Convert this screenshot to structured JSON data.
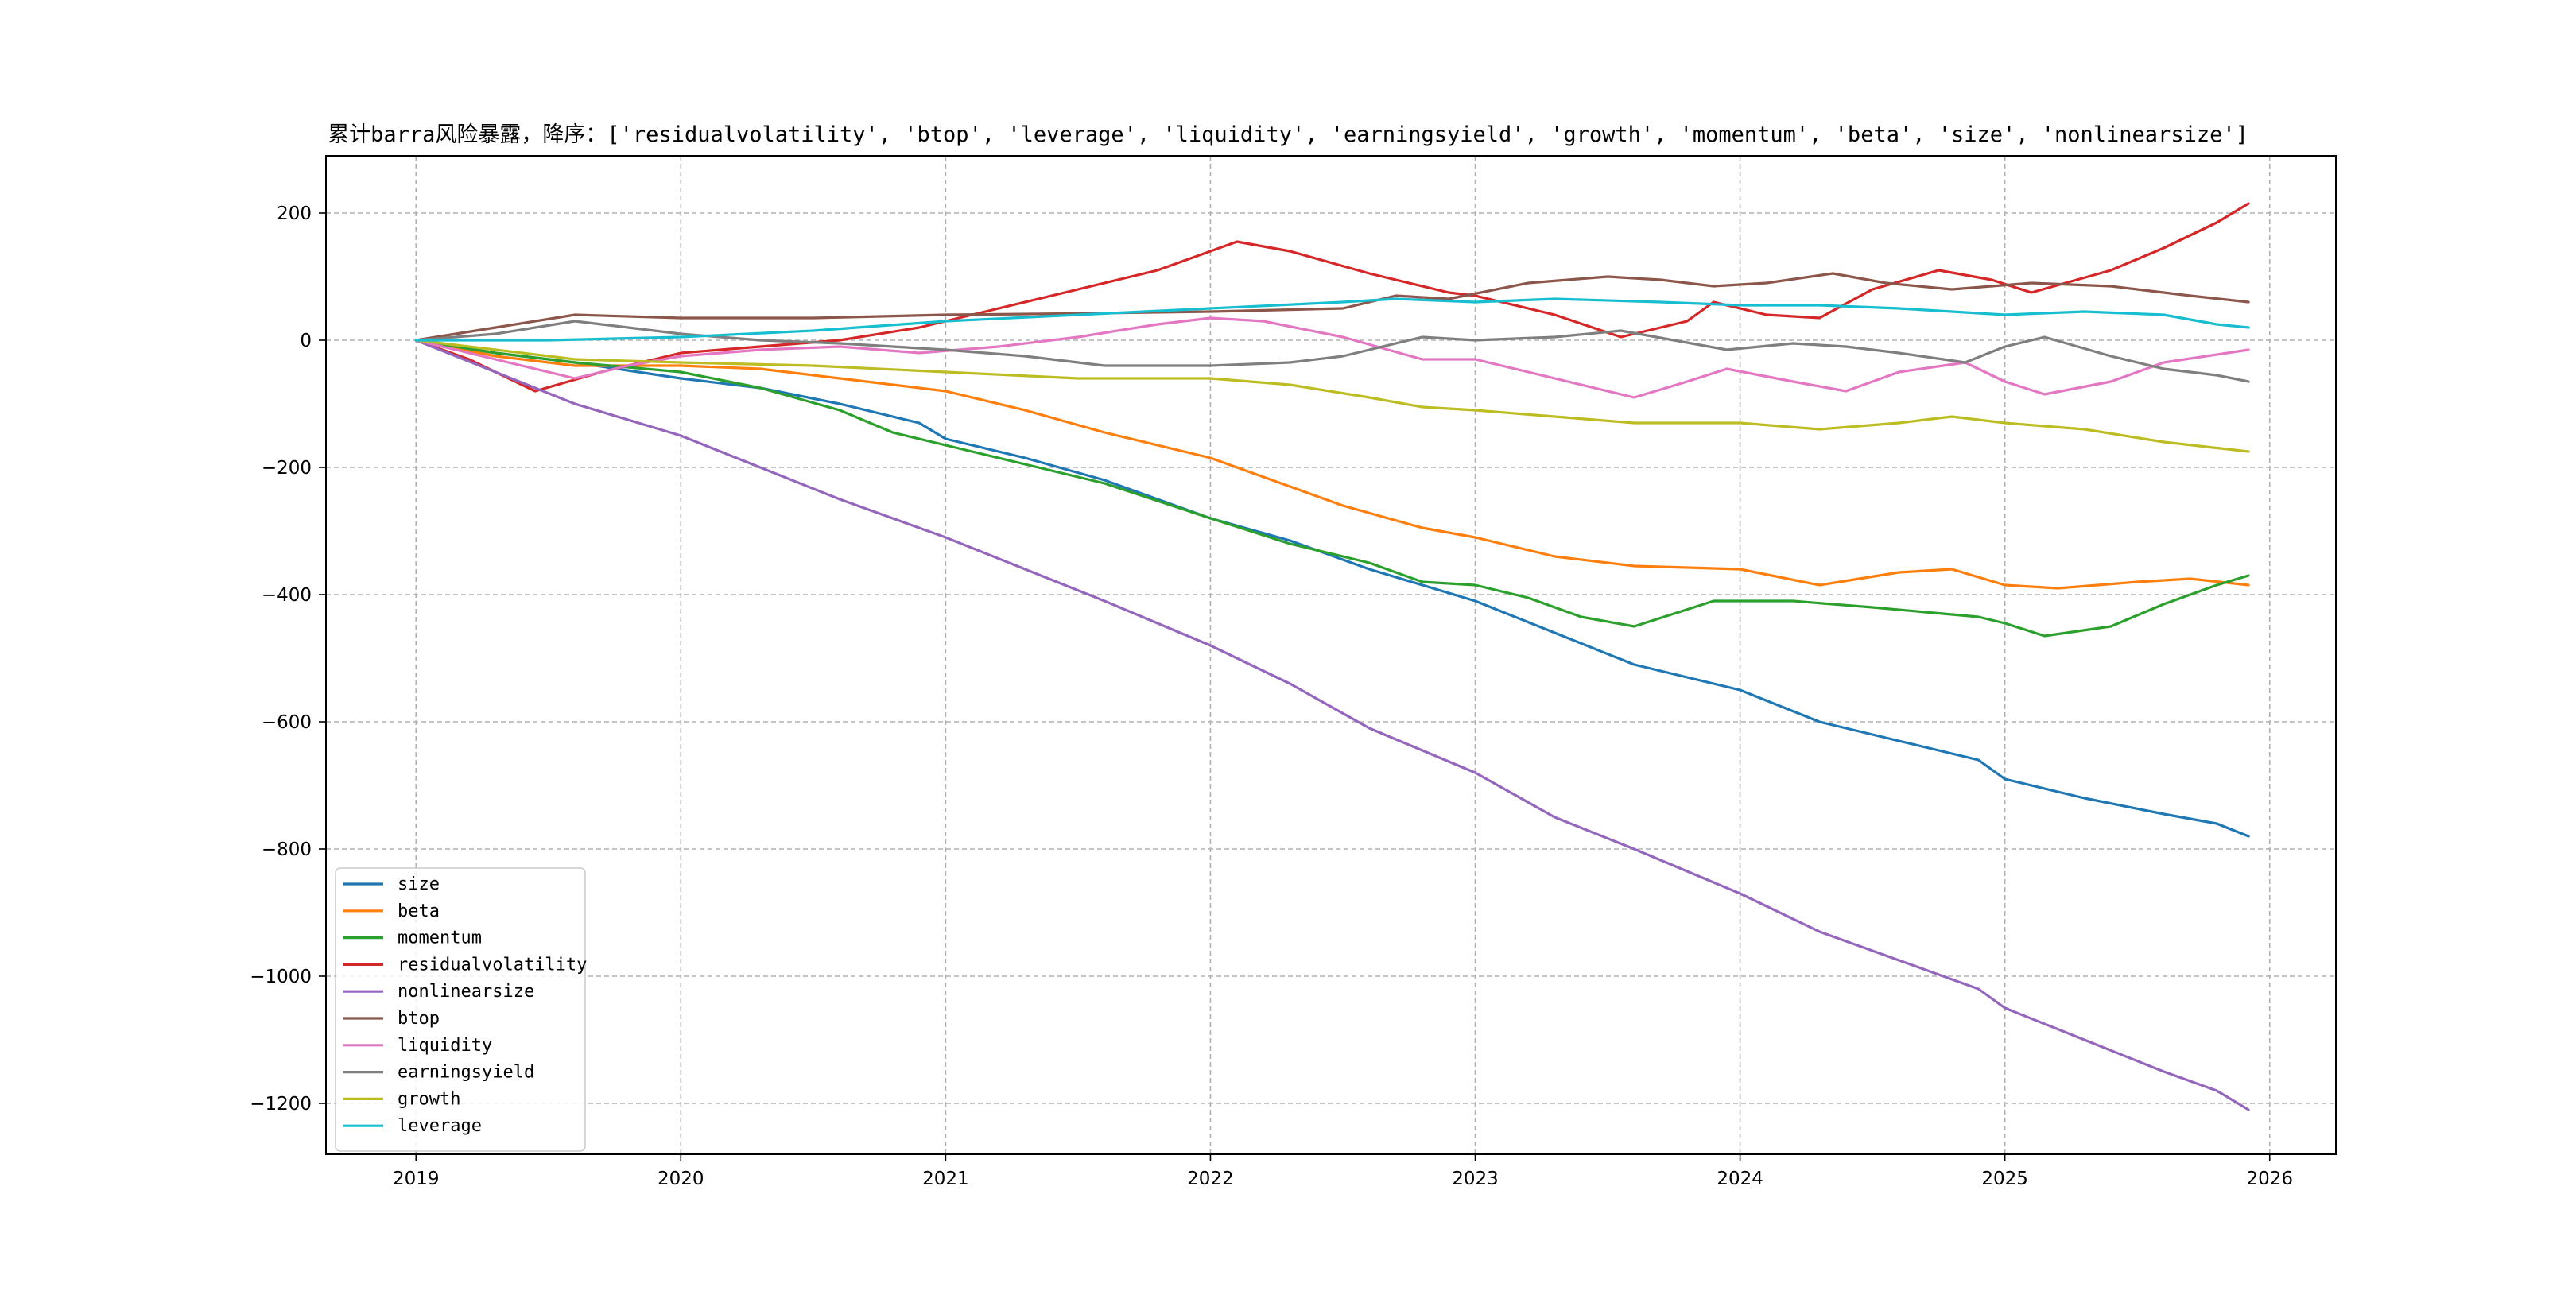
{
  "chart_data": {
    "type": "line",
    "title": "累计barra风险暴露，降序：['residualvolatility', 'btop', 'leverage', 'liquidity', 'earningsyield', 'growth', 'momentum', 'beta', 'size', 'nonlinearsize']",
    "xlabel": "",
    "ylabel": "",
    "xlim": [
      2018.66,
      2026.25
    ],
    "ylim": [
      -1280,
      290
    ],
    "xticks": [
      "2019",
      "2020",
      "2021",
      "2022",
      "2023",
      "2024",
      "2025",
      "2026"
    ],
    "yticks": [
      200,
      0,
      -200,
      -400,
      -600,
      -800,
      -1000,
      -1200
    ],
    "grid": true,
    "legend_position": "lower-left",
    "series": [
      {
        "name": "size",
        "color": "#1f77b4",
        "points": [
          [
            2019.0,
            0
          ],
          [
            2019.3,
            -20
          ],
          [
            2019.6,
            -35
          ],
          [
            2020.0,
            -60
          ],
          [
            2020.3,
            -75
          ],
          [
            2020.6,
            -100
          ],
          [
            2020.9,
            -130
          ],
          [
            2021.0,
            -155
          ],
          [
            2021.3,
            -185
          ],
          [
            2021.6,
            -220
          ],
          [
            2022.0,
            -280
          ],
          [
            2022.3,
            -315
          ],
          [
            2022.6,
            -360
          ],
          [
            2023.0,
            -410
          ],
          [
            2023.3,
            -460
          ],
          [
            2023.6,
            -510
          ],
          [
            2024.0,
            -550
          ],
          [
            2024.3,
            -600
          ],
          [
            2024.6,
            -630
          ],
          [
            2024.9,
            -660
          ],
          [
            2025.0,
            -690
          ],
          [
            2025.3,
            -720
          ],
          [
            2025.6,
            -745
          ],
          [
            2025.8,
            -760
          ],
          [
            2025.92,
            -780
          ]
        ]
      },
      {
        "name": "beta",
        "color": "#ff7f0e",
        "points": [
          [
            2019.0,
            0
          ],
          [
            2019.3,
            -25
          ],
          [
            2019.6,
            -40
          ],
          [
            2020.0,
            -40
          ],
          [
            2020.3,
            -45
          ],
          [
            2020.6,
            -60
          ],
          [
            2021.0,
            -80
          ],
          [
            2021.3,
            -110
          ],
          [
            2021.6,
            -145
          ],
          [
            2022.0,
            -185
          ],
          [
            2022.2,
            -215
          ],
          [
            2022.5,
            -260
          ],
          [
            2022.8,
            -295
          ],
          [
            2023.0,
            -310
          ],
          [
            2023.3,
            -340
          ],
          [
            2023.6,
            -355
          ],
          [
            2024.0,
            -360
          ],
          [
            2024.3,
            -385
          ],
          [
            2024.6,
            -365
          ],
          [
            2024.8,
            -360
          ],
          [
            2025.0,
            -385
          ],
          [
            2025.2,
            -390
          ],
          [
            2025.5,
            -380
          ],
          [
            2025.7,
            -375
          ],
          [
            2025.92,
            -385
          ]
        ]
      },
      {
        "name": "momentum",
        "color": "#2ca02c",
        "points": [
          [
            2019.0,
            0
          ],
          [
            2019.3,
            -20
          ],
          [
            2019.6,
            -35
          ],
          [
            2020.0,
            -50
          ],
          [
            2020.3,
            -75
          ],
          [
            2020.6,
            -110
          ],
          [
            2020.8,
            -145
          ],
          [
            2021.0,
            -165
          ],
          [
            2021.3,
            -195
          ],
          [
            2021.6,
            -225
          ],
          [
            2022.0,
            -280
          ],
          [
            2022.3,
            -320
          ],
          [
            2022.6,
            -350
          ],
          [
            2022.8,
            -380
          ],
          [
            2023.0,
            -385
          ],
          [
            2023.2,
            -405
          ],
          [
            2023.4,
            -435
          ],
          [
            2023.6,
            -450
          ],
          [
            2023.9,
            -410
          ],
          [
            2024.2,
            -410
          ],
          [
            2024.5,
            -420
          ],
          [
            2024.9,
            -435
          ],
          [
            2025.0,
            -445
          ],
          [
            2025.15,
            -465
          ],
          [
            2025.4,
            -450
          ],
          [
            2025.6,
            -415
          ],
          [
            2025.8,
            -385
          ],
          [
            2025.92,
            -370
          ]
        ]
      },
      {
        "name": "residualvolatility",
        "color": "#d62728",
        "points": [
          [
            2019.0,
            0
          ],
          [
            2019.2,
            -30
          ],
          [
            2019.45,
            -80
          ],
          [
            2019.7,
            -50
          ],
          [
            2020.0,
            -20
          ],
          [
            2020.3,
            -10
          ],
          [
            2020.6,
            0
          ],
          [
            2020.9,
            20
          ],
          [
            2021.2,
            50
          ],
          [
            2021.5,
            80
          ],
          [
            2021.8,
            110
          ],
          [
            2022.0,
            140
          ],
          [
            2022.1,
            155
          ],
          [
            2022.3,
            140
          ],
          [
            2022.6,
            105
          ],
          [
            2022.9,
            75
          ],
          [
            2023.0,
            70
          ],
          [
            2023.3,
            40
          ],
          [
            2023.55,
            5
          ],
          [
            2023.8,
            30
          ],
          [
            2023.9,
            60
          ],
          [
            2024.1,
            40
          ],
          [
            2024.3,
            35
          ],
          [
            2024.5,
            80
          ],
          [
            2024.75,
            110
          ],
          [
            2024.95,
            95
          ],
          [
            2025.1,
            75
          ],
          [
            2025.4,
            110
          ],
          [
            2025.6,
            145
          ],
          [
            2025.8,
            185
          ],
          [
            2025.92,
            215
          ]
        ]
      },
      {
        "name": "nonlinearsize",
        "color": "#9467bd",
        "points": [
          [
            2019.0,
            0
          ],
          [
            2019.3,
            -50
          ],
          [
            2019.6,
            -100
          ],
          [
            2020.0,
            -150
          ],
          [
            2020.3,
            -200
          ],
          [
            2020.6,
            -250
          ],
          [
            2020.8,
            -280
          ],
          [
            2021.0,
            -310
          ],
          [
            2021.3,
            -360
          ],
          [
            2021.6,
            -410
          ],
          [
            2022.0,
            -480
          ],
          [
            2022.3,
            -540
          ],
          [
            2022.6,
            -610
          ],
          [
            2023.0,
            -680
          ],
          [
            2023.3,
            -750
          ],
          [
            2023.6,
            -800
          ],
          [
            2024.0,
            -870
          ],
          [
            2024.3,
            -930
          ],
          [
            2024.6,
            -975
          ],
          [
            2024.9,
            -1020
          ],
          [
            2025.0,
            -1050
          ],
          [
            2025.3,
            -1100
          ],
          [
            2025.6,
            -1150
          ],
          [
            2025.8,
            -1180
          ],
          [
            2025.92,
            -1210
          ]
        ]
      },
      {
        "name": "btop",
        "color": "#8c564b",
        "points": [
          [
            2019.0,
            0
          ],
          [
            2019.3,
            20
          ],
          [
            2019.6,
            40
          ],
          [
            2020.0,
            35
          ],
          [
            2020.5,
            35
          ],
          [
            2021.0,
            40
          ],
          [
            2021.5,
            42
          ],
          [
            2022.0,
            45
          ],
          [
            2022.5,
            50
          ],
          [
            2022.7,
            70
          ],
          [
            2022.9,
            65
          ],
          [
            2023.2,
            90
          ],
          [
            2023.5,
            100
          ],
          [
            2023.7,
            95
          ],
          [
            2023.9,
            85
          ],
          [
            2024.1,
            90
          ],
          [
            2024.35,
            105
          ],
          [
            2024.55,
            90
          ],
          [
            2024.8,
            80
          ],
          [
            2025.1,
            90
          ],
          [
            2025.4,
            85
          ],
          [
            2025.7,
            70
          ],
          [
            2025.92,
            60
          ]
        ]
      },
      {
        "name": "liquidity",
        "color": "#e377c2",
        "points": [
          [
            2019.0,
            0
          ],
          [
            2019.3,
            -30
          ],
          [
            2019.6,
            -60
          ],
          [
            2019.8,
            -40
          ],
          [
            2020.0,
            -25
          ],
          [
            2020.3,
            -15
          ],
          [
            2020.6,
            -10
          ],
          [
            2020.9,
            -20
          ],
          [
            2021.2,
            -10
          ],
          [
            2021.5,
            5
          ],
          [
            2021.8,
            25
          ],
          [
            2022.0,
            35
          ],
          [
            2022.2,
            30
          ],
          [
            2022.5,
            5
          ],
          [
            2022.8,
            -30
          ],
          [
            2023.0,
            -30
          ],
          [
            2023.3,
            -60
          ],
          [
            2023.6,
            -90
          ],
          [
            2023.8,
            -65
          ],
          [
            2023.95,
            -45
          ],
          [
            2024.2,
            -65
          ],
          [
            2024.4,
            -80
          ],
          [
            2024.6,
            -50
          ],
          [
            2024.85,
            -35
          ],
          [
            2025.0,
            -65
          ],
          [
            2025.15,
            -85
          ],
          [
            2025.4,
            -65
          ],
          [
            2025.6,
            -35
          ],
          [
            2025.92,
            -15
          ]
        ]
      },
      {
        "name": "earningsyield",
        "color": "#7f7f7f",
        "points": [
          [
            2019.0,
            0
          ],
          [
            2019.3,
            10
          ],
          [
            2019.6,
            30
          ],
          [
            2020.0,
            10
          ],
          [
            2020.3,
            0
          ],
          [
            2020.6,
            -5
          ],
          [
            2021.0,
            -15
          ],
          [
            2021.3,
            -25
          ],
          [
            2021.6,
            -40
          ],
          [
            2022.0,
            -40
          ],
          [
            2022.3,
            -35
          ],
          [
            2022.5,
            -25
          ],
          [
            2022.8,
            5
          ],
          [
            2023.0,
            0
          ],
          [
            2023.3,
            5
          ],
          [
            2023.55,
            15
          ],
          [
            2023.75,
            0
          ],
          [
            2023.95,
            -15
          ],
          [
            2024.2,
            -5
          ],
          [
            2024.4,
            -10
          ],
          [
            2024.6,
            -20
          ],
          [
            2024.85,
            -35
          ],
          [
            2025.0,
            -10
          ],
          [
            2025.15,
            5
          ],
          [
            2025.4,
            -25
          ],
          [
            2025.6,
            -45
          ],
          [
            2025.8,
            -55
          ],
          [
            2025.92,
            -65
          ]
        ]
      },
      {
        "name": "growth",
        "color": "#bcbd22",
        "points": [
          [
            2019.0,
            0
          ],
          [
            2019.3,
            -15
          ],
          [
            2019.6,
            -30
          ],
          [
            2020.0,
            -35
          ],
          [
            2020.5,
            -40
          ],
          [
            2021.0,
            -50
          ],
          [
            2021.5,
            -60
          ],
          [
            2022.0,
            -60
          ],
          [
            2022.3,
            -70
          ],
          [
            2022.6,
            -90
          ],
          [
            2022.8,
            -105
          ],
          [
            2023.0,
            -110
          ],
          [
            2023.3,
            -120
          ],
          [
            2023.6,
            -130
          ],
          [
            2024.0,
            -130
          ],
          [
            2024.3,
            -140
          ],
          [
            2024.6,
            -130
          ],
          [
            2024.8,
            -120
          ],
          [
            2025.0,
            -130
          ],
          [
            2025.3,
            -140
          ],
          [
            2025.6,
            -160
          ],
          [
            2025.92,
            -175
          ]
        ]
      },
      {
        "name": "leverage",
        "color": "#17becf",
        "points": [
          [
            2019.0,
            0
          ],
          [
            2019.5,
            0
          ],
          [
            2020.0,
            5
          ],
          [
            2020.5,
            15
          ],
          [
            2021.0,
            30
          ],
          [
            2021.5,
            40
          ],
          [
            2022.0,
            50
          ],
          [
            2022.5,
            60
          ],
          [
            2022.7,
            65
          ],
          [
            2023.0,
            60
          ],
          [
            2023.3,
            65
          ],
          [
            2023.7,
            60
          ],
          [
            2024.0,
            55
          ],
          [
            2024.3,
            55
          ],
          [
            2024.6,
            50
          ],
          [
            2025.0,
            40
          ],
          [
            2025.3,
            45
          ],
          [
            2025.6,
            40
          ],
          [
            2025.8,
            25
          ],
          [
            2025.92,
            20
          ]
        ]
      }
    ]
  }
}
